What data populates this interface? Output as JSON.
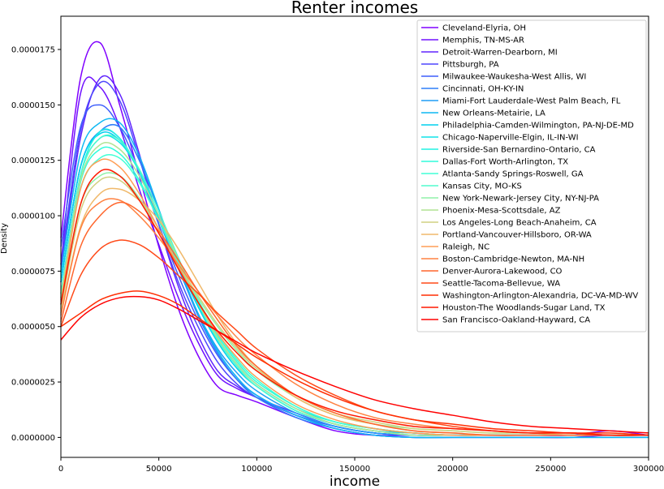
{
  "chart_data": {
    "type": "line",
    "title": "Renter incomes",
    "xlabel": "income",
    "ylabel": "Density",
    "xlim": [
      0,
      300000
    ],
    "ylim": [
      -9e-07,
      1.9e-05
    ],
    "grid": false,
    "legend_placement": "top-right",
    "xticks": [
      0,
      50000,
      100000,
      150000,
      200000,
      250000,
      300000
    ],
    "xtick_labels": [
      "0",
      "50000",
      "100000",
      "150000",
      "200000",
      "250000",
      "300000"
    ],
    "yticks": [
      0,
      2.5e-06,
      5e-06,
      7.5e-06,
      1e-05,
      1.25e-05,
      1.5e-05,
      1.75e-05
    ],
    "ytick_labels": [
      "0.0000000",
      "0.0000025",
      "0.0000050",
      "0.0000075",
      "0.0000100",
      "0.0000125",
      "0.0000150",
      "0.0000175"
    ],
    "x": [
      0,
      10000,
      20000,
      30000,
      40000,
      50000,
      60000,
      70000,
      80000,
      90000,
      100000,
      120000,
      140000,
      160000,
      180000,
      200000,
      220000,
      240000,
      260000,
      280000,
      300000
    ],
    "series": [
      {
        "name": "Cleveland-Elyria, OH",
        "color": "#8000ff",
        "values": [
          9e-06,
          1.62e-05,
          1.78e-05,
          1.5e-05,
          1.18e-05,
          8.6e-06,
          5.8e-06,
          3.7e-06,
          2.3e-06,
          1.9e-06,
          1.6e-06,
          9e-07,
          3e-07,
          1e-07,
          1e-07,
          1e-07,
          1e-07,
          1e-07,
          1e-07,
          3e-07,
          1e-07
        ]
      },
      {
        "name": "Memphis, TN-MS-AR",
        "color": "#7012ff",
        "values": [
          7.8e-06,
          1.55e-05,
          1.58e-05,
          1.4e-05,
          1.12e-05,
          8.7e-06,
          6.3e-06,
          4.3e-06,
          2.8e-06,
          2.2e-06,
          1.8e-06,
          1e-06,
          4e-07,
          1e-07,
          0,
          0,
          0,
          0,
          0,
          1e-07,
          1e-07
        ]
      },
      {
        "name": "Detroit-Warren-Dearborn, MI",
        "color": "#6025fe",
        "values": [
          7.5e-06,
          1.35e-05,
          1.62e-05,
          1.55e-05,
          1.28e-05,
          9.6e-06,
          6.8e-06,
          4.6e-06,
          3e-06,
          2.3e-06,
          1.8e-06,
          1.1e-06,
          5e-07,
          2e-07,
          1e-07,
          1e-07,
          1e-07,
          1e-07,
          1e-07,
          1e-07,
          1e-07
        ]
      },
      {
        "name": "Pittsburgh, PA",
        "color": "#4f46fd",
        "values": [
          7.8e-06,
          1.38e-05,
          1.6e-05,
          1.52e-05,
          1.26e-05,
          9.6e-06,
          7e-06,
          5e-06,
          3.4e-06,
          2.4e-06,
          1.8e-06,
          1e-06,
          5e-07,
          2e-07,
          1e-07,
          1e-07,
          1e-07,
          1e-07,
          1e-07,
          1e-07,
          1e-07
        ]
      },
      {
        "name": "Milwaukee-Waukesha-West Allis, WI",
        "color": "#3f5ffb",
        "values": [
          8.6e-06,
          1.4e-05,
          1.5e-05,
          1.4e-05,
          1.2e-05,
          9.6e-06,
          7.3e-06,
          5.3e-06,
          3.7e-06,
          2.6e-06,
          1.9e-06,
          1e-06,
          5e-07,
          2e-07,
          1e-07,
          1e-07,
          1e-07,
          1e-07,
          1e-07,
          1e-07,
          1e-07
        ]
      },
      {
        "name": "Cincinnati, OH-KY-IN",
        "color": "#2f7ff9",
        "values": [
          7e-06,
          1.22e-05,
          1.38e-05,
          1.4e-05,
          1.25e-05,
          1.02e-05,
          7.7e-06,
          5.5e-06,
          3.8e-06,
          2.6e-06,
          1.8e-06,
          9e-07,
          4e-07,
          1e-07,
          0,
          0,
          0,
          0,
          0,
          0,
          0
        ]
      },
      {
        "name": "Miami-Fort Lauderdale-West Palm Beach, FL",
        "color": "#1f9df6",
        "values": [
          7e-06,
          1.22e-05,
          1.38e-05,
          1.35e-05,
          1.2e-05,
          9.8e-06,
          7.6e-06,
          5.6e-06,
          4e-06,
          2.9e-06,
          2.1e-06,
          1.1e-06,
          5e-07,
          2e-07,
          1e-07,
          1e-07,
          1e-07,
          1e-07,
          1e-07,
          1e-07,
          1e-07
        ]
      },
      {
        "name": "New Orleans-Metairie, LA",
        "color": "#0fb8f3",
        "values": [
          7.4e-06,
          1.28e-05,
          1.42e-05,
          1.42e-05,
          1.27e-05,
          1.03e-05,
          7.8e-06,
          5.6e-06,
          3.9e-06,
          2.7e-06,
          1.9e-06,
          1e-06,
          4e-07,
          1e-07,
          0,
          0,
          0,
          0,
          0,
          0,
          0
        ]
      },
      {
        "name": "Philadelphia-Camden-Wilmington, PA-NJ-DE-MD",
        "color": "#00d0ee",
        "values": [
          7e-06,
          1.22e-05,
          1.37e-05,
          1.34e-05,
          1.2e-05,
          9.9e-06,
          7.8e-06,
          5.9e-06,
          4.3e-06,
          3.1e-06,
          2.3e-06,
          1.2e-06,
          6e-07,
          3e-07,
          2e-07,
          1e-07,
          1e-07,
          1e-07,
          1e-07,
          1e-07,
          1e-07
        ]
      },
      {
        "name": "Chicago-Naperville-Elgin, IL-IN-WI",
        "color": "#10e3e9",
        "values": [
          6.5e-06,
          1.18e-05,
          1.35e-05,
          1.33e-05,
          1.2e-05,
          1e-05,
          8e-06,
          6.1e-06,
          4.5e-06,
          3.3e-06,
          2.4e-06,
          1.3e-06,
          7e-07,
          4e-07,
          2e-07,
          1e-07,
          1e-07,
          1e-07,
          1e-07,
          1e-07,
          1e-07
        ]
      },
      {
        "name": "Riverside-San Bernardino-Ontario, CA",
        "color": "#20f2e3",
        "values": [
          6e-06,
          1.18e-05,
          1.38e-05,
          1.35e-05,
          1.2e-05,
          1e-05,
          7.9e-06,
          6e-06,
          4.4e-06,
          3.2e-06,
          2.3e-06,
          1.2e-06,
          6e-07,
          3e-07,
          1e-07,
          1e-07,
          1e-07,
          1e-07,
          1e-07,
          1e-07,
          1e-07
        ]
      },
      {
        "name": "Dallas-Fort Worth-Arlington, TX",
        "color": "#30fcdc",
        "values": [
          6.2e-06,
          1.15e-05,
          1.3e-05,
          1.28e-05,
          1.16e-05,
          9.8e-06,
          7.9e-06,
          6.1e-06,
          4.6e-06,
          3.4e-06,
          2.5e-06,
          1.4e-06,
          7e-07,
          4e-07,
          2e-07,
          1e-07,
          1e-07,
          1e-07,
          1e-07,
          1e-07,
          1e-07
        ]
      },
      {
        "name": "Atlanta-Sandy Springs-Roswell, GA",
        "color": "#40ffd5",
        "values": [
          6.5e-06,
          1.12e-05,
          1.26e-05,
          1.26e-05,
          1.15e-05,
          9.8e-06,
          7.9e-06,
          6.2e-06,
          4.7e-06,
          3.5e-06,
          2.6e-06,
          1.4e-06,
          7e-07,
          4e-07,
          2e-07,
          1e-07,
          1e-07,
          1e-07,
          1e-07,
          1e-07,
          1e-07
        ]
      },
      {
        "name": "Kansas City, MO-KS",
        "color": "#50fbcd",
        "values": [
          6.3e-06,
          1.18e-05,
          1.35e-05,
          1.34e-05,
          1.21e-05,
          1.02e-05,
          8.1e-06,
          6.1e-06,
          4.4e-06,
          3.2e-06,
          2.3e-06,
          1.2e-06,
          6e-07,
          3e-07,
          1e-07,
          1e-07,
          1e-07,
          1e-07,
          1e-07,
          1e-07,
          1e-07
        ]
      },
      {
        "name": "New York-Newark-Jersey City, NY-NJ-PA",
        "color": "#90f2a8",
        "values": [
          6e-06,
          1.05e-05,
          1.18e-05,
          1.18e-05,
          1.08e-05,
          9.4e-06,
          7.8e-06,
          6.3e-06,
          5e-06,
          3.9e-06,
          3e-06,
          1.8e-06,
          1e-06,
          6e-07,
          4e-07,
          3e-07,
          2e-07,
          2e-07,
          1e-07,
          1e-07,
          1e-07
        ]
      },
      {
        "name": "Phoenix-Mesa-Scottsdale, AZ",
        "color": "#b0e394",
        "values": [
          6.3e-06,
          1.16e-05,
          1.32e-05,
          1.3e-05,
          1.18e-05,
          1e-05,
          8e-06,
          6.1e-06,
          4.5e-06,
          3.3e-06,
          2.4e-06,
          1.3e-06,
          6e-07,
          3e-07,
          1e-07,
          1e-07,
          1e-07,
          1e-07,
          1e-07,
          1e-07,
          1e-07
        ]
      },
      {
        "name": "Los Angeles-Long Beach-Anaheim, CA",
        "color": "#d0d080",
        "values": [
          5.8e-06,
          1.02e-05,
          1.16e-05,
          1.16e-05,
          1.07e-05,
          9.4e-06,
          7.8e-06,
          6.4e-06,
          5.1e-06,
          4e-06,
          3.1e-06,
          1.9e-06,
          1.1e-06,
          7e-07,
          4e-07,
          3e-07,
          2e-07,
          2e-07,
          1e-07,
          1e-07,
          1e-07
        ]
      },
      {
        "name": "Portland-Vancouver-Hillsboro, OR-WA",
        "color": "#f0b96b",
        "values": [
          5.6e-06,
          9.5e-06,
          1.1e-05,
          1.12e-05,
          1.07e-05,
          9.8e-06,
          8.5e-06,
          7e-06,
          5.5e-06,
          4.2e-06,
          3.2e-06,
          1.8e-06,
          1e-06,
          6e-07,
          3e-07,
          2e-07,
          1e-07,
          1e-07,
          1e-07,
          1e-07,
          1e-07
        ]
      },
      {
        "name": "Raleigh, NC",
        "color": "#ff9e56",
        "values": [
          6e-06,
          1.12e-05,
          1.25e-05,
          1.22e-05,
          1.1e-05,
          9.4e-06,
          7.7e-06,
          6.1e-06,
          4.7e-06,
          3.6e-06,
          2.7e-06,
          1.5e-06,
          8e-07,
          4e-07,
          2e-07,
          1e-07,
          1e-07,
          1e-07,
          1e-07,
          1e-07,
          1e-07
        ]
      },
      {
        "name": "Boston-Cambridge-Newton, MA-NH",
        "color": "#ff8242",
        "values": [
          5.5e-06,
          9.4e-06,
          1.06e-05,
          1.07e-05,
          1e-05,
          9e-06,
          7.8e-06,
          6.6e-06,
          5.5e-06,
          4.5e-06,
          3.7e-06,
          2.4e-06,
          1.5e-06,
          9e-07,
          6e-07,
          4e-07,
          3e-07,
          2e-07,
          2e-07,
          1e-07,
          1e-07
        ]
      },
      {
        "name": "Denver-Aurora-Lakewood, CO",
        "color": "#ff662d",
        "values": [
          5.2e-06,
          8.6e-06,
          1e-05,
          1.06e-05,
          1.02e-05,
          9.3e-06,
          8e-06,
          6.6e-06,
          5.3e-06,
          4.1e-06,
          3.2e-06,
          1.9e-06,
          1.1e-06,
          6e-07,
          3e-07,
          2e-07,
          1e-07,
          1e-07,
          1e-07,
          1e-07,
          1e-07
        ]
      },
      {
        "name": "Seattle-Tacoma-Bellevue, WA",
        "color": "#ff4a19",
        "values": [
          5e-06,
          7.3e-06,
          8.5e-06,
          8.9e-06,
          8.7e-06,
          8.1e-06,
          7.3e-06,
          6.5e-06,
          5.6e-06,
          4.8e-06,
          4e-06,
          2.8e-06,
          1.9e-06,
          1.2e-06,
          8e-07,
          5e-07,
          3e-07,
          2e-07,
          2e-07,
          1e-07,
          1e-07
        ]
      },
      {
        "name": "Washington-Arlington-Alexandria, DC-VA-MD-WV",
        "color": "#ff2e04",
        "values": [
          5e-06,
          5.6e-06,
          6.2e-06,
          6.5e-06,
          6.6e-06,
          6.4e-06,
          6e-06,
          5.4e-06,
          4.8e-06,
          4.2e-06,
          3.6e-06,
          2.6e-06,
          1.8e-06,
          1.2e-06,
          8e-07,
          6e-07,
          4e-07,
          3e-07,
          2e-07,
          2e-07,
          1e-07
        ]
      },
      {
        "name": "Houston-The Woodlands-Sugar Land, TX",
        "color": "#ff1900",
        "values": [
          6e-06,
          1.05e-05,
          1.2e-05,
          1.18e-05,
          1.07e-05,
          9.2e-06,
          7.6e-06,
          6.1e-06,
          4.8e-06,
          3.8e-06,
          3e-06,
          1.9e-06,
          1.2e-06,
          8e-07,
          5e-07,
          4e-07,
          3e-07,
          2e-07,
          2e-07,
          1e-07,
          1e-07
        ]
      },
      {
        "name": "San Francisco-Oakland-Hayward, CA",
        "color": "#ff0000",
        "values": [
          4.4e-06,
          5.4e-06,
          6e-06,
          6.3e-06,
          6.35e-06,
          6.2e-06,
          5.8e-06,
          5.3e-06,
          4.8e-06,
          4.3e-06,
          3.8e-06,
          3e-06,
          2.3e-06,
          1.7e-06,
          1.3e-06,
          1e-06,
          7e-07,
          5e-07,
          4e-07,
          3e-07,
          2e-07
        ]
      }
    ]
  }
}
